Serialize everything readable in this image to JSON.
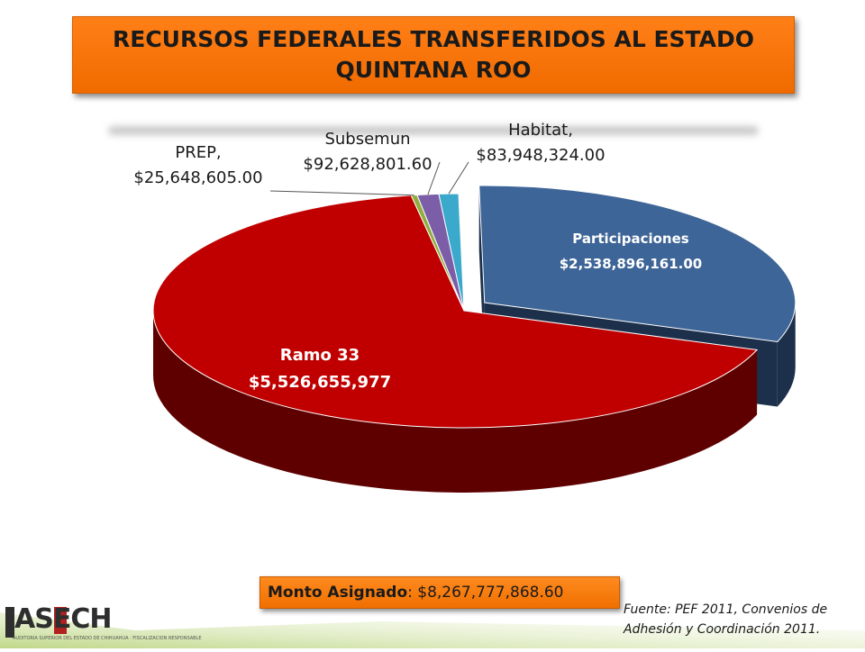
{
  "title": {
    "line1": "RECURSOS FEDERALES TRANSFERIDOS AL ESTADO",
    "line2": "QUINTANA ROO"
  },
  "chart_data": {
    "type": "pie",
    "title": "",
    "slices": [
      {
        "name": "Participaciones",
        "value": 2538896161.0,
        "display": "$2,538,896,161.00",
        "color": "#3e6597",
        "side": "#1c2f4b",
        "label_style": "inside"
      },
      {
        "name": "Ramo 33",
        "value": 5526655977,
        "display": "$5,526,655,977",
        "color": "#c00000",
        "side": "#5e0000",
        "label_style": "inside"
      },
      {
        "name": "PREP,",
        "value": 25648605.0,
        "display": "$25,648,605.00",
        "color": "#8fae3e",
        "side": "#49581f",
        "label_style": "callout"
      },
      {
        "name": "Subsemun",
        "value": 92628801.6,
        "display": "$92,628,801.60",
        "color": "#7b5ea7",
        "side": "#3e2f55",
        "label_style": "callout"
      },
      {
        "name": "Habitat,",
        "value": 83948324.0,
        "display": "$83,948,324.00",
        "color": "#3aa9cc",
        "side": "#1d5666",
        "label_style": "callout"
      }
    ]
  },
  "total": {
    "label": "Monto Asignado",
    "value": "$8,267,777,868.60"
  },
  "source": {
    "line1": "Fuente: PEF 2011, Convenios de",
    "line2": "Adhesión y  Coordinación 2011."
  },
  "logo": {
    "text": "ASECH",
    "subtitle": "AUDITORIA SUPERIOR DEL ESTADO DE CHIHUAHUA · FISCALIZACION RESPONSABLE"
  },
  "colors": {
    "banner": "#f07000",
    "accent_green": "#6f8f1f"
  }
}
